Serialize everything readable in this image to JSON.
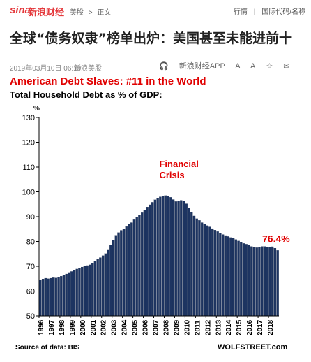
{
  "topbar": {
    "logo": "sina",
    "logo_sub": "新浪财经",
    "crumbs": [
      "美股",
      ">",
      "正文"
    ],
    "right_items": [
      "行情",
      "|",
      "国际代码/名称"
    ]
  },
  "article": {
    "title": "全球“债务奴隶”榜单出炉：美国甚至未能进前十",
    "date": "2019年03月10日 06:19",
    "source": "新浪美股",
    "tools": [
      "新浪财经APP",
      "A",
      "A",
      "☆",
      "✉"
    ]
  },
  "chart_data": {
    "type": "bar",
    "title": "American Debt Slaves: #11 in the World",
    "subtitle": "Total Household Debt as % of GDP:",
    "ylabel": "%",
    "ylim": [
      50,
      130
    ],
    "yticks": [
      50,
      60,
      70,
      80,
      90,
      100,
      110,
      120,
      130
    ],
    "xtick_labels": [
      "1996",
      "1997",
      "1998",
      "1999",
      "2000",
      "2001",
      "2002",
      "2003",
      "2004",
      "2005",
      "2006",
      "2007",
      "2008",
      "2009",
      "2010",
      "2011",
      "2012",
      "2013",
      "2014",
      "2015",
      "2016",
      "2017",
      "2018"
    ],
    "x_start_year": 1996,
    "values": [
      64.6,
      64.9,
      65.2,
      65.0,
      65.2,
      65.4,
      65.3,
      65.6,
      66.0,
      66.4,
      66.9,
      67.5,
      67.9,
      68.3,
      68.9,
      69.3,
      69.7,
      70.0,
      70.3,
      70.6,
      71.3,
      72.0,
      72.8,
      73.5,
      74.3,
      75.1,
      76.5,
      78.5,
      80.6,
      82.5,
      83.6,
      84.5,
      85.1,
      86.0,
      86.9,
      87.6,
      88.8,
      89.9,
      90.8,
      91.6,
      92.7,
      93.9,
      94.8,
      95.8,
      96.8,
      97.5,
      98.0,
      98.3,
      98.5,
      98.3,
      97.8,
      96.9,
      96.1,
      96.3,
      96.6,
      96.2,
      95.2,
      93.6,
      91.8,
      90.3,
      89.2,
      88.5,
      87.6,
      87.0,
      86.4,
      85.9,
      85.2,
      84.6,
      84.0,
      83.3,
      82.8,
      82.4,
      82.0,
      81.6,
      81.3,
      80.8,
      80.2,
      79.7,
      79.2,
      78.9,
      78.5,
      78.0,
      77.6,
      77.5,
      77.8,
      78.0,
      78.0,
      77.6,
      77.8,
      77.9,
      77.3,
      76.4
    ],
    "annotations": [
      {
        "text": "Financial",
        "year": 2008.2,
        "value": 110
      },
      {
        "text": "Crisis",
        "year": 2008.2,
        "value": 105.5
      }
    ],
    "last_label": "76.4%",
    "footer_left": "Source of data: BIS",
    "footer_right": "WOLFSTREET.com",
    "colors": {
      "bar": "#1d3461",
      "bar_edge": "#0e1f3d",
      "accent": "#e00000",
      "grid": "#c8c8c8"
    },
    "grid": false
  }
}
